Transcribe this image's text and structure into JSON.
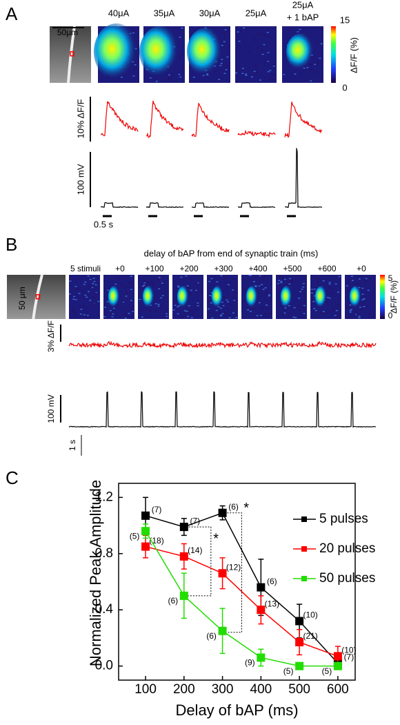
{
  "panel_a": {
    "label": "A",
    "scale_bar": "50μm",
    "conditions": [
      "40μA",
      "35μA",
      "30μA",
      "25μA"
    ],
    "combo_condition": [
      "25μA",
      "+ 1 bAP"
    ],
    "colorbar": {
      "max": 15,
      "min": 0,
      "label": "ΔF/F (%)"
    },
    "fluor_scale": "10% ΔF/F",
    "voltage_scale": "100 mV",
    "time_scale": "0.5 s"
  },
  "panel_b": {
    "label": "B",
    "title": "delay of bAP from end of synaptic train (ms)",
    "scale_bar": "50 μm",
    "conditions": [
      "5 stimuli",
      "+0",
      "+100",
      "+200",
      "+300",
      "+400",
      "+500",
      "+600",
      "+0"
    ],
    "colorbar": {
      "max": 5,
      "min": 0,
      "label": "ΔF/F (%)"
    },
    "fluor_scale": "3% ΔF/F",
    "voltage_scale": "100 mV",
    "time_scale": "1 s"
  },
  "panel_c": {
    "label": "C",
    "significance": [
      "*",
      "*"
    ]
  },
  "chart_data": {
    "type": "line",
    "xlabel": "Delay of bAP (ms)",
    "ylabel": "Normalized Peak Amplitude",
    "x": [
      100,
      200,
      300,
      400,
      500,
      600
    ],
    "xlim": [
      30,
      645
    ],
    "xticks": [
      100,
      200,
      300,
      400,
      500,
      600
    ],
    "ylim": [
      -0.1,
      1.3
    ],
    "yticks": [
      {
        "value": 0,
        "label": "0.0"
      },
      0.4,
      0.8,
      1.2
    ],
    "series": [
      {
        "name": "5 pulses",
        "color": "#000000",
        "values": [
          1.07,
          0.99,
          1.09,
          0.56,
          0.32,
          0.02
        ],
        "errors": [
          0.13,
          0.06,
          0.05,
          0.2,
          0.12,
          0.02
        ],
        "n_labels": [
          "(7)",
          "(7)",
          "(6)",
          "(6)",
          "(10)",
          "(7)"
        ]
      },
      {
        "name": "20 pulses",
        "color": "#ff0000",
        "values": [
          0.85,
          0.78,
          0.66,
          0.4,
          0.17,
          0.07
        ],
        "errors": [
          0.08,
          0.09,
          0.11,
          0.1,
          0.09,
          0.07
        ],
        "n_labels": [
          "(18)",
          "(14)",
          "(12)",
          "(13)",
          "(21)",
          "(10)"
        ]
      },
      {
        "name": "50 pulses",
        "color": "#22dd00",
        "values": [
          0.96,
          0.5,
          0.25,
          0.06,
          0.0,
          0.0
        ],
        "errors": [
          0.05,
          0.16,
          0.16,
          0.06,
          0.01,
          0.01
        ],
        "n_labels": [
          "(5)",
          "(6)",
          "(6)",
          "(9)",
          "(5)",
          "(5)"
        ]
      }
    ]
  }
}
